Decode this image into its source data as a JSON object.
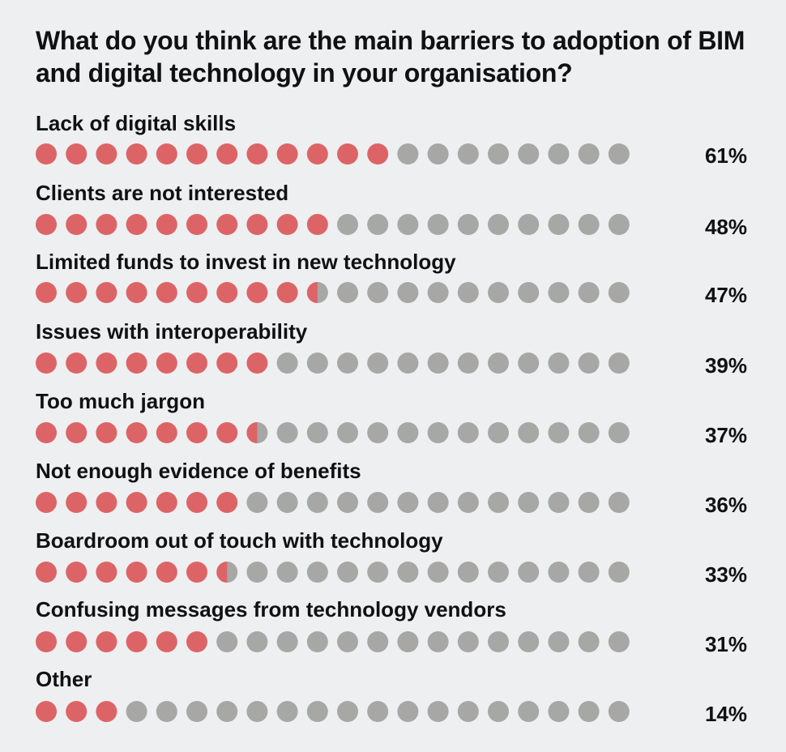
{
  "chart_data": {
    "type": "dot-matrix",
    "title": "What do you think are the main barriers to adoption of BIM and digital technology in your organisation?",
    "dots_per_row": 20,
    "percent_per_dot": 5,
    "categories": [
      "Lack of digital skills",
      "Clients are not interested",
      "Limited funds to invest in new technology",
      "Issues with interoperability",
      "Too much jargon",
      "Not enough evidence of benefits",
      "Boardroom out of touch with technology",
      "Confusing messages from technology vendors",
      "Other"
    ],
    "values": [
      61,
      48,
      47,
      39,
      37,
      36,
      33,
      31,
      14
    ],
    "value_labels": [
      "61%",
      "48%",
      "47%",
      "39%",
      "37%",
      "36%",
      "33%",
      "31%",
      "14%"
    ],
    "filled_dots": [
      12,
      10,
      9.5,
      8,
      7.5,
      7,
      6.5,
      6,
      3
    ],
    "colors": {
      "filled": "#dd6466",
      "empty": "#a7a7a5",
      "background": "#eeeff1",
      "text": "#111111"
    }
  }
}
